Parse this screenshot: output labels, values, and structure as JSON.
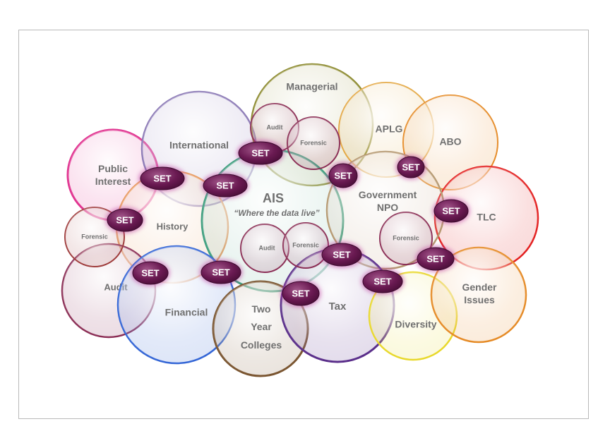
{
  "circles": [
    {
      "id": "public-interest",
      "label": [
        "Public",
        "Interest"
      ],
      "color": "#e0308e"
    },
    {
      "id": "international",
      "label": [
        "International"
      ],
      "color": "#8a78b5"
    },
    {
      "id": "managerial",
      "label": [
        "Managerial"
      ],
      "color": "#8c8a2e"
    },
    {
      "id": "aplg",
      "label": [
        "APLG"
      ],
      "color": "#e3a640"
    },
    {
      "id": "abo",
      "label": [
        "ABO"
      ],
      "color": "#e58a25"
    },
    {
      "id": "tlc",
      "label": [
        "TLC"
      ],
      "color": "#e32020"
    },
    {
      "id": "history",
      "label": [
        "History"
      ],
      "color": "#e89a60"
    },
    {
      "id": "ais",
      "label": [
        "AIS"
      ],
      "subtitle": "“Where the data live”",
      "color": "#3e9e7e"
    },
    {
      "id": "government-npo",
      "label": [
        "Government",
        "NPO"
      ],
      "color": "#b59870"
    },
    {
      "id": "audit-left",
      "label": [
        "Audit"
      ],
      "color": "#8b2e55"
    },
    {
      "id": "financial",
      "label": [
        "Financial"
      ],
      "color": "#3466d6"
    },
    {
      "id": "two-year-colleges",
      "label": [
        "Two",
        "Year",
        "Colleges"
      ],
      "color": "#7a5530"
    },
    {
      "id": "tax",
      "label": [
        "Tax"
      ],
      "color": "#5a2e8a"
    },
    {
      "id": "diversity",
      "label": [
        "Diversity"
      ],
      "color": "#e8d82a"
    },
    {
      "id": "gender-issues",
      "label": [
        "Gender",
        "Issues"
      ],
      "color": "#e58a25"
    }
  ],
  "small_circles": [
    {
      "id": "forensic-left",
      "label": "Forensic",
      "color": "#9e3a3a"
    },
    {
      "id": "audit-managerial",
      "label": "Audit",
      "color": "#8b2e55"
    },
    {
      "id": "forensic-managerial",
      "label": "Forensic",
      "color": "#8b2e55"
    },
    {
      "id": "audit-ais",
      "label": "Audit",
      "color": "#8b2e55"
    },
    {
      "id": "forensic-ais",
      "label": "Forensic",
      "color": "#8b2e55"
    },
    {
      "id": "forensic-government",
      "label": "Forensic",
      "color": "#8b2e55"
    }
  ],
  "set_badge": {
    "text": "SET",
    "count": 14,
    "color": "#6a1a52"
  }
}
